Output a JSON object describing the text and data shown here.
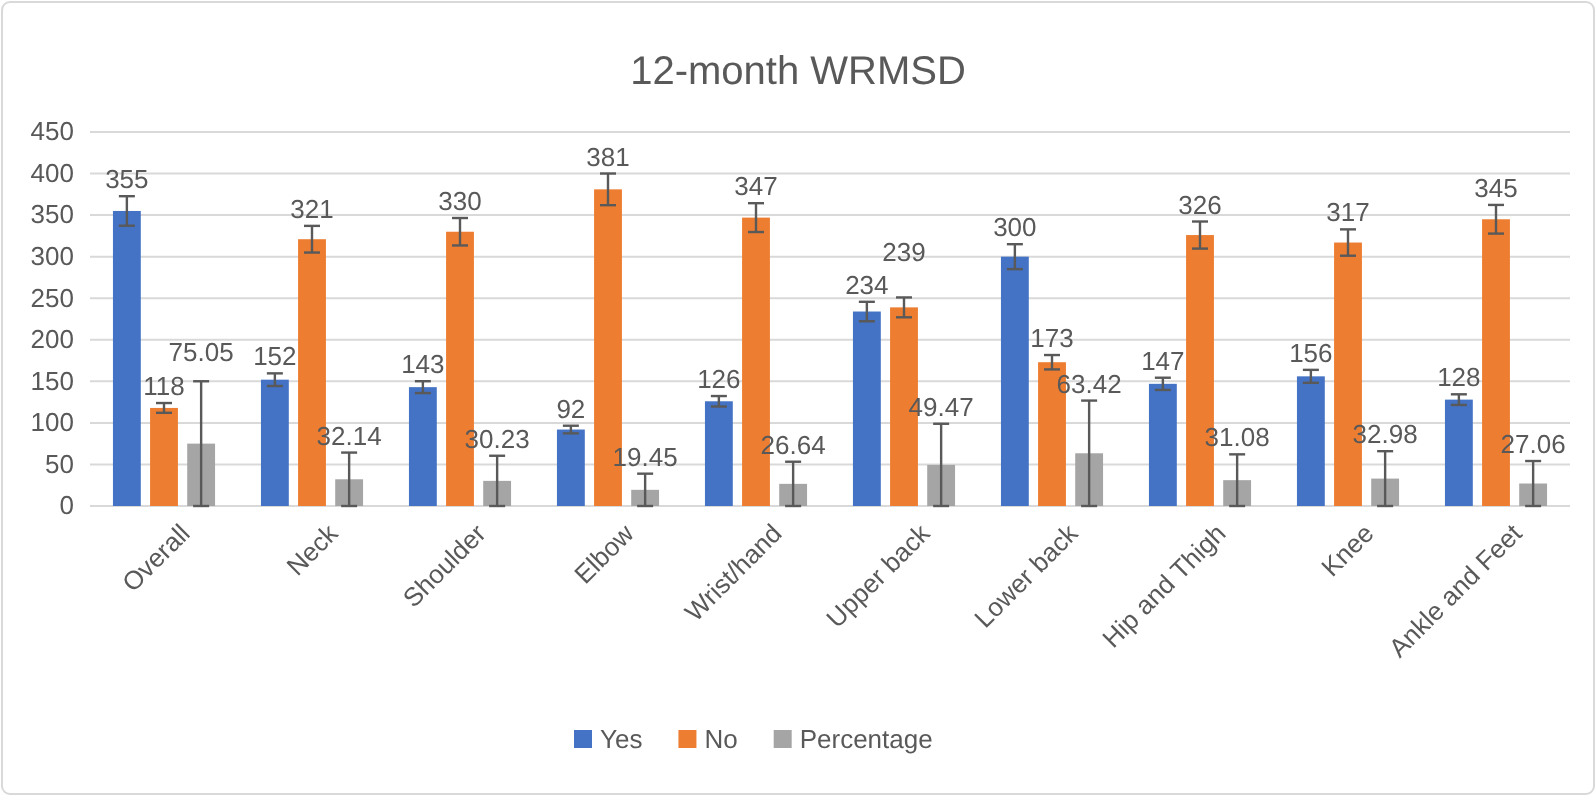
{
  "chart_data": {
    "type": "bar",
    "title": "12-month WRMSD",
    "categories": [
      "Overall",
      "Neck",
      "Shoulder",
      "Elbow",
      "Wrist/hand",
      "Upper back",
      "Lower back",
      "Hip and Thigh",
      "Knee",
      "Ankle and Feet"
    ],
    "series": [
      {
        "name": "Yes",
        "color": "#4472c4",
        "values": [
          355,
          152,
          143,
          92,
          126,
          234,
          300,
          147,
          156,
          128
        ],
        "errors": [
          17.75,
          7.6,
          7.15,
          4.6,
          6.3,
          11.7,
          15,
          7.35,
          7.8,
          6.4
        ]
      },
      {
        "name": "No",
        "color": "#ed7d31",
        "values": [
          118,
          321,
          330,
          381,
          347,
          239,
          173,
          326,
          317,
          345
        ],
        "errors": [
          5.9,
          16.05,
          16.5,
          19.05,
          17.35,
          11.95,
          8.65,
          16.3,
          15.85,
          17.25
        ]
      },
      {
        "name": "Percentage",
        "color": "#a5a5a5",
        "values": [
          75.05,
          32.14,
          30.23,
          19.45,
          26.64,
          49.47,
          63.42,
          31.08,
          32.98,
          27.06
        ],
        "errors": [
          75.05,
          32.14,
          30.23,
          19.45,
          26.64,
          49.47,
          63.42,
          31.08,
          32.98,
          27.06
        ]
      }
    ],
    "ylim": [
      0,
      450
    ],
    "yticks": [
      0,
      50,
      100,
      150,
      200,
      250,
      300,
      350,
      400,
      450
    ],
    "grid": "y",
    "legend": "bottom",
    "data_labels": true
  }
}
